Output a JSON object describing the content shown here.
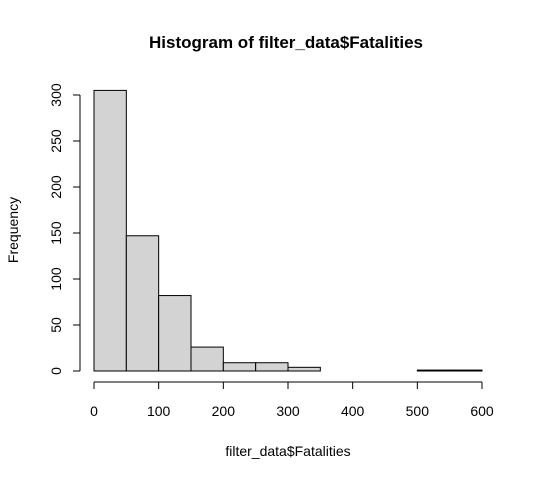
{
  "chart_data": {
    "type": "bar",
    "title": "Histogram of filter_data$Fatalities",
    "xlabel": "filter_data$Fatalities",
    "ylabel": "Frequency",
    "bin_edges": [
      0,
      50,
      100,
      150,
      200,
      250,
      300,
      350,
      400,
      450,
      500,
      550,
      600
    ],
    "values": [
      305,
      147,
      82,
      26,
      9,
      9,
      4,
      0,
      0,
      0,
      1,
      1
    ],
    "xlim": [
      0,
      600
    ],
    "ylim": [
      0,
      300
    ],
    "x_ticks": [
      0,
      100,
      200,
      300,
      400,
      500,
      600
    ],
    "y_ticks": [
      0,
      50,
      100,
      150,
      200,
      250,
      300
    ],
    "grid": false,
    "colors": {
      "bar_fill": "#d3d3d3",
      "bar_stroke": "#000000"
    }
  }
}
